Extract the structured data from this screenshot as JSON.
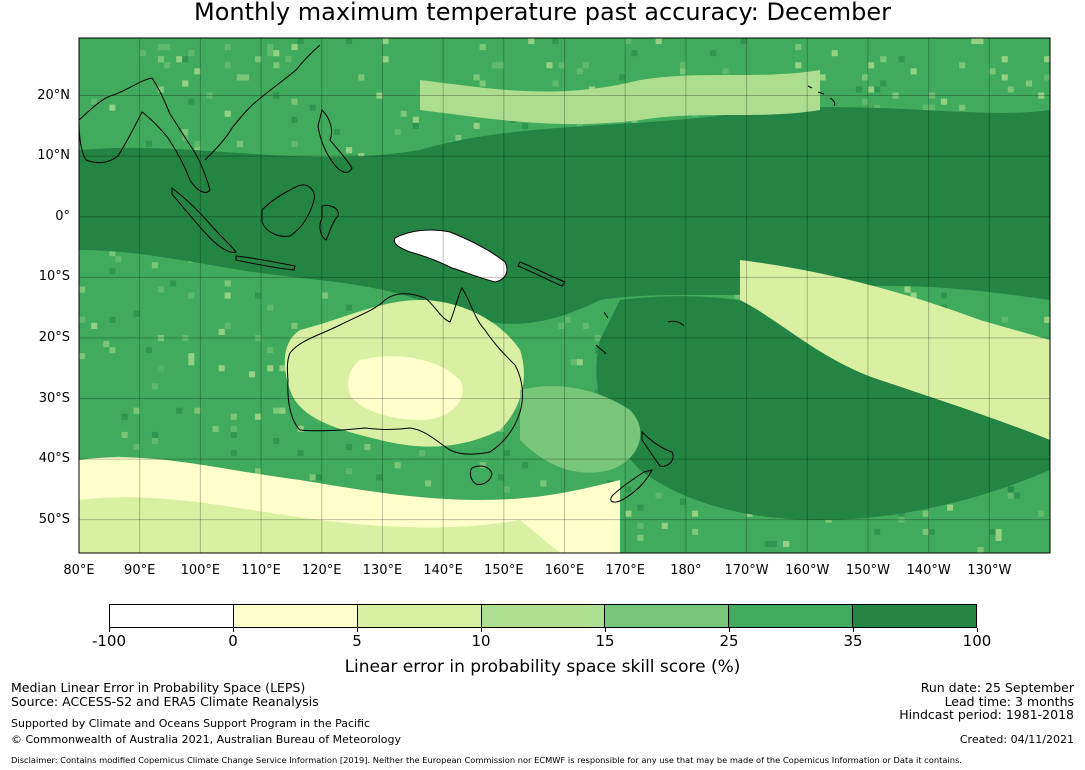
{
  "title": "Monthly maximum temperature past accuracy: December",
  "map": {
    "lat_labels": [
      "20°N",
      "10°N",
      "0°",
      "10°S",
      "20°S",
      "30°S",
      "40°S",
      "50°S"
    ],
    "lon_labels": [
      "80°E",
      "90°E",
      "100°E",
      "110°E",
      "120°E",
      "130°E",
      "140°E",
      "150°E",
      "160°E",
      "170°E",
      "180°",
      "170°W",
      "160°W",
      "150°W",
      "140°W",
      "130°W"
    ],
    "extent": {
      "lon_min": 80,
      "lon_max": 240,
      "lat_min": -55.5,
      "lat_max": 29.5
    },
    "regions": {
      "western_pacific_high_skill": "35-100",
      "australia_interior": "5-10",
      "southern_ocean_band": "0-5",
      "new_guinea_low": "-100-0"
    }
  },
  "colorbar": {
    "colors": [
      "#ffffff",
      "#ffffcc",
      "#d9f0a3",
      "#addd8e",
      "#78c679",
      "#41ab5d",
      "#238443"
    ],
    "tick_labels": [
      "-100",
      "0",
      "5",
      "10",
      "15",
      "25",
      "35",
      "100"
    ],
    "title": "Linear error in probability space skill score (%)"
  },
  "footer": {
    "left_line1": "Median Linear Error in Probability Space (LEPS)",
    "left_line2": "Source: ACCESS-S2 and ERA5 Climate Reanalysis",
    "left_line3": "Supported by Climate and Oceans Support Program in the Pacific",
    "left_line4": "© Commonwealth of Australia 2021, Australian Bureau of Meteorology",
    "right_line1": "Run date: 25 September",
    "right_line2": "Lead time: 3 months",
    "right_line3": "Hindcast period: 1981-2018",
    "right_line4": "Created: 04/11/2021",
    "disclaimer": "Disclaimer: Contains modified Copernicus Climate Change Service Information [2019]. Neither the European Commission nor ECMWF is responsible for any use that may be made of the Copernicus Information or Data it contains."
  }
}
